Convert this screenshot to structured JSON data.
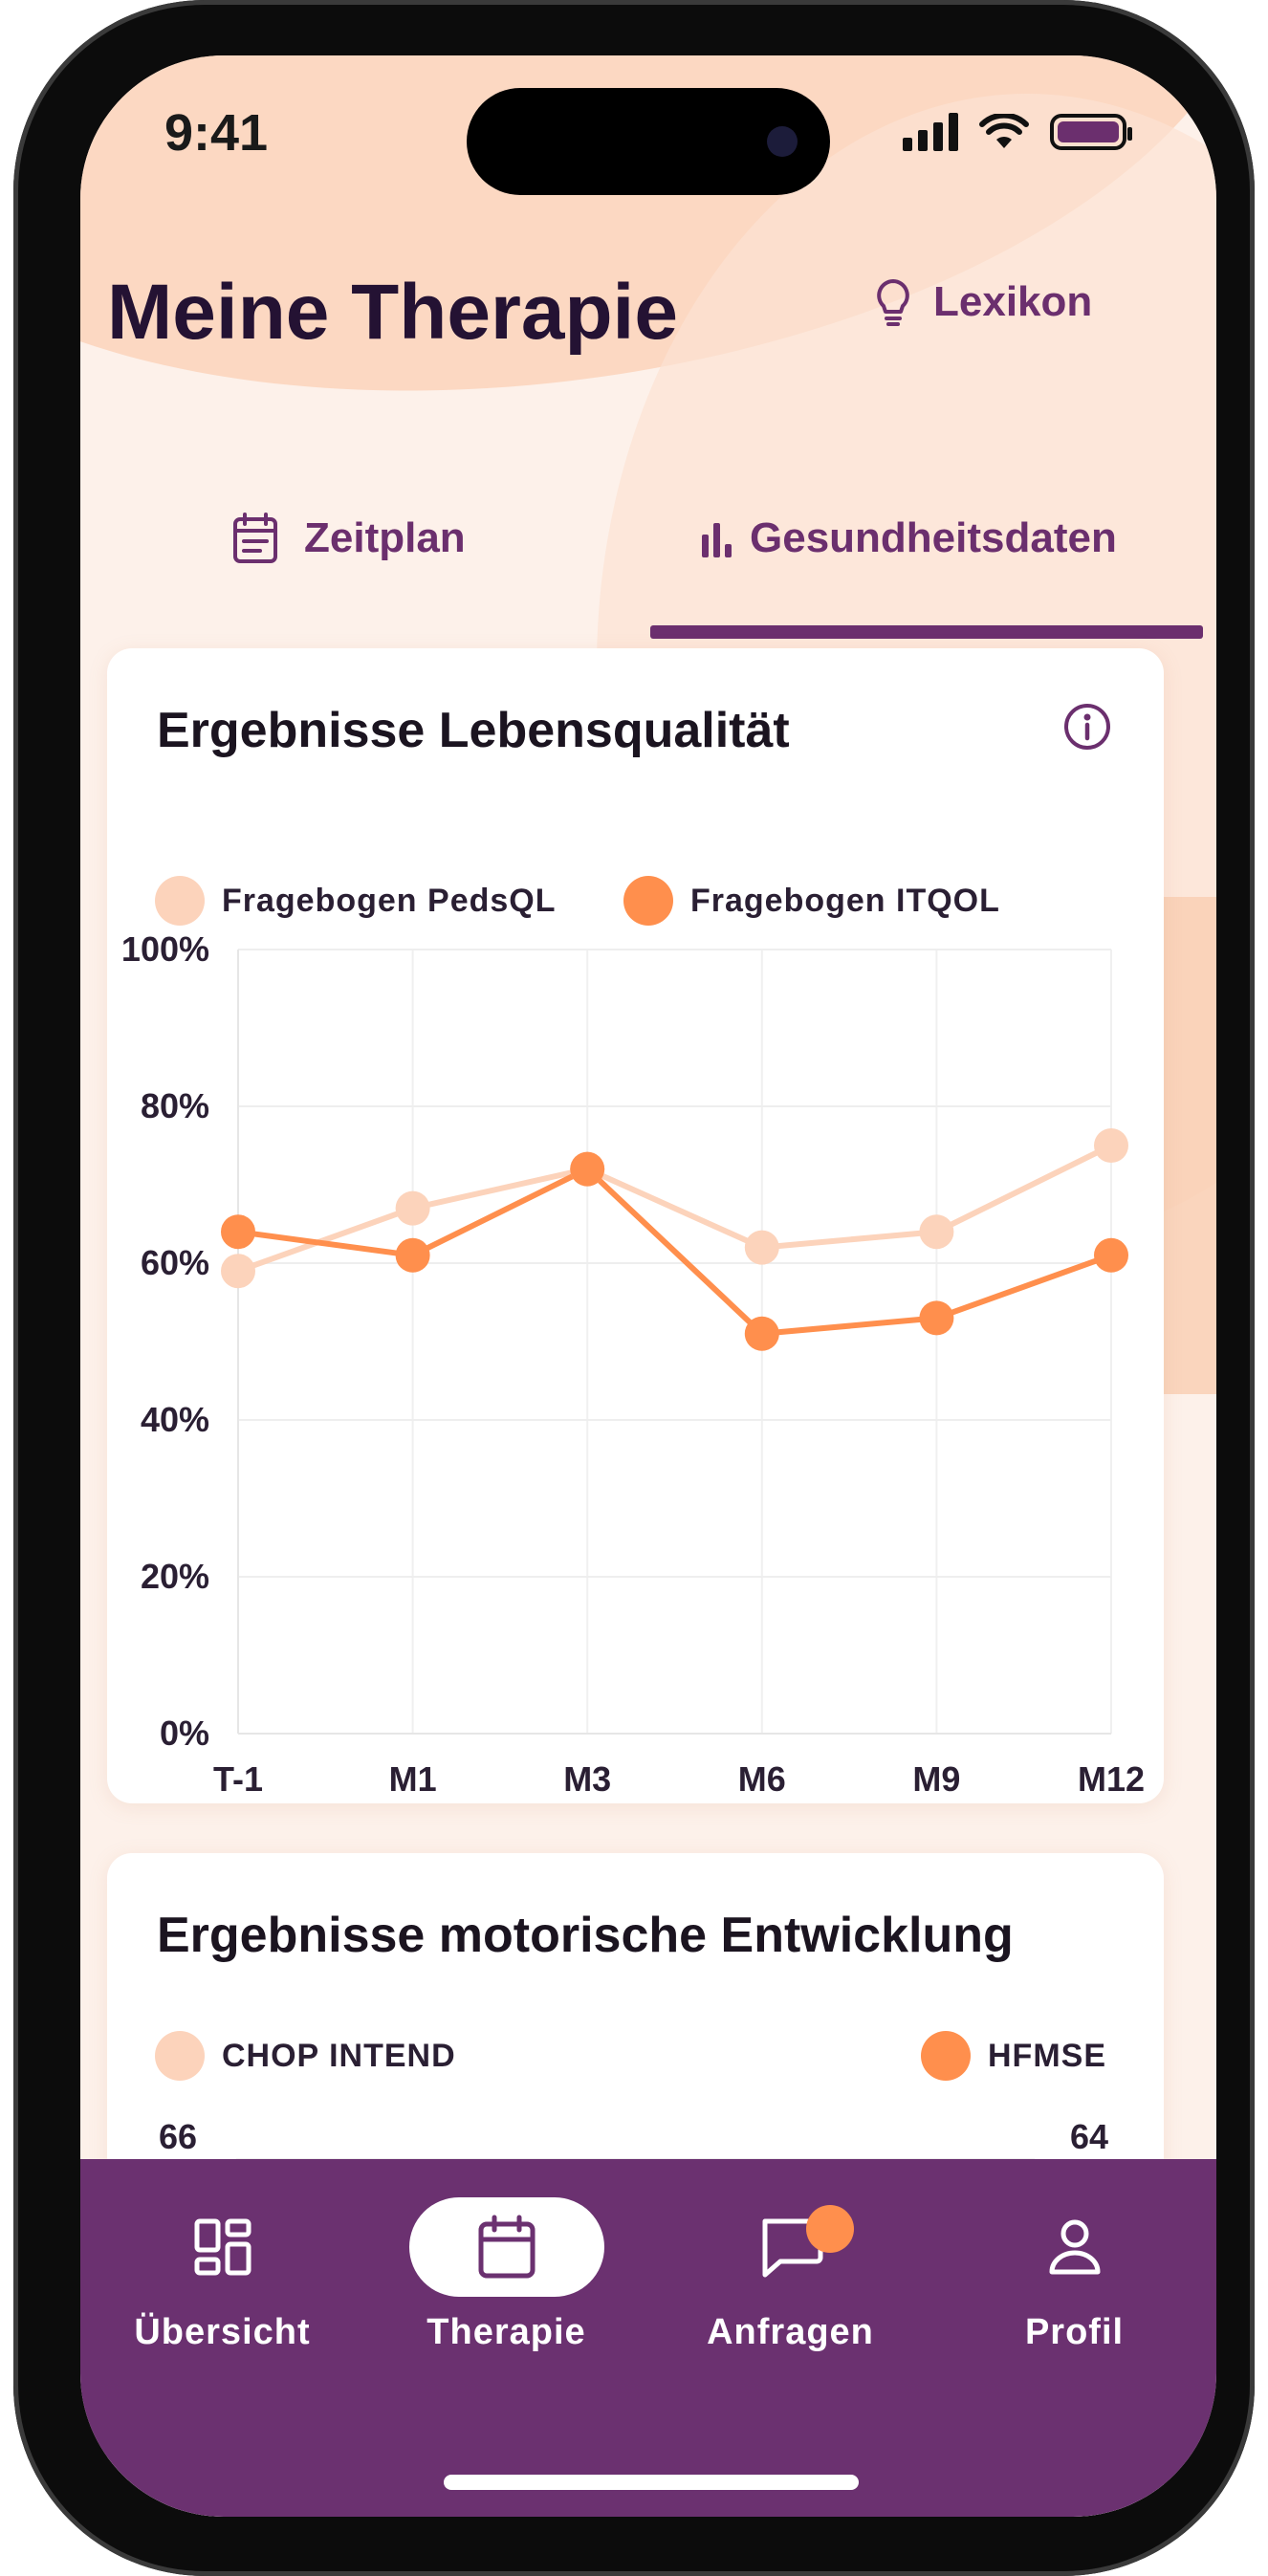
{
  "status": {
    "time": "9:41"
  },
  "header": {
    "title": "Meine Therapie",
    "lexikon_label": "Lexikon"
  },
  "tabs": [
    {
      "label": "Zeitplan",
      "icon": "calendar-list-icon",
      "active": false
    },
    {
      "label": "Gesundheitsdaten",
      "icon": "bar-chart-icon",
      "active": true
    }
  ],
  "colors": {
    "accent": "#6b2f6e",
    "series_light": "#fcd3bb",
    "series_dark": "#ff8f4d",
    "nav_bg": "#6b3170"
  },
  "card_quality": {
    "title": "Ergebnisse Lebensqualität",
    "legend": [
      "Fragebogen PedsQL",
      "Fragebogen ITQOL"
    ]
  },
  "card_motor": {
    "title": "Ergebnisse motorische Entwicklung",
    "legend": [
      "CHOP INTEND",
      "HFMSE"
    ],
    "y_left_top": "66",
    "y_right_top": "64"
  },
  "chart_data": [
    {
      "type": "line",
      "title": "Ergebnisse Lebensqualität",
      "categories": [
        "T-1",
        "M1",
        "M3",
        "M6",
        "M9",
        "M12"
      ],
      "y_ticks": [
        "100%",
        "80%",
        "60%",
        "40%",
        "20%",
        "0%"
      ],
      "ylim": [
        0,
        100
      ],
      "series": [
        {
          "name": "Fragebogen PedsQL",
          "values": [
            59,
            67,
            72,
            62,
            64,
            75
          ]
        },
        {
          "name": "Fragebogen ITQOL",
          "values": [
            64,
            61,
            72,
            51,
            53,
            61
          ]
        }
      ],
      "grid": true,
      "legend": "top-left"
    }
  ],
  "nav": [
    {
      "label": "Übersicht",
      "icon": "dashboard-icon",
      "active": false
    },
    {
      "label": "Therapie",
      "icon": "calendar-icon",
      "active": true
    },
    {
      "label": "Anfragen",
      "icon": "chat-icon",
      "active": false,
      "badge": true
    },
    {
      "label": "Profil",
      "icon": "person-icon",
      "active": false
    }
  ]
}
